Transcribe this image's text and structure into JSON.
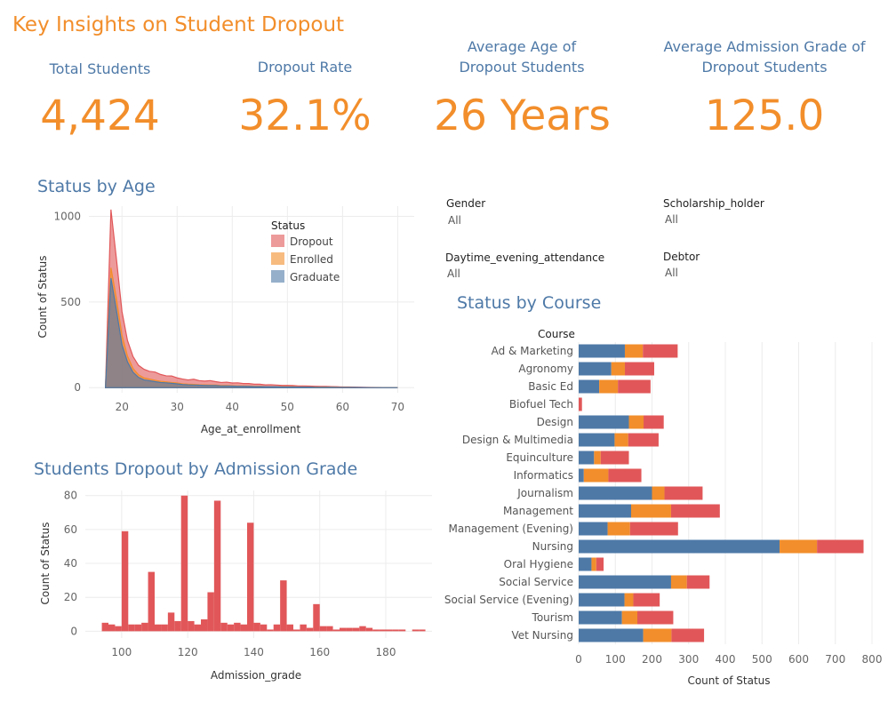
{
  "page_title": "Key Insights on Student Dropout",
  "kpis": [
    {
      "label": "Total Students",
      "value": "4,424"
    },
    {
      "label": "Dropout Rate",
      "value": "32.1%"
    },
    {
      "label": "Average Age of Dropout Students",
      "value": "26 Years"
    },
    {
      "label": "Average Admission Grade of Dropout Students",
      "value": "125.0"
    }
  ],
  "filters": [
    {
      "label": "Gender",
      "value": "All"
    },
    {
      "label": "Scholarship_holder",
      "value": "All"
    },
    {
      "label": "Daytime_evening_attendance",
      "value": "All"
    },
    {
      "label": "Debtor",
      "value": "All"
    }
  ],
  "colors": {
    "dropout": "#e15759",
    "enrolled": "#f28e2b",
    "graduate": "#4e79a7",
    "accent": "#f28e2b",
    "title_blue": "#4e79a7"
  },
  "chart_data": [
    {
      "id": "status_by_age",
      "type": "area",
      "title": "Status by Age",
      "xlabel": "Age_at_enrollment",
      "ylabel": "Count of Status",
      "xlim": [
        14,
        73
      ],
      "ylim": [
        -30,
        1060
      ],
      "xticks": [
        20,
        30,
        40,
        50,
        60,
        70
      ],
      "yticks": [
        0,
        500,
        1000
      ],
      "legend": {
        "title": "Status",
        "position": "top-right",
        "entries": [
          "Dropout",
          "Enrolled",
          "Graduate"
        ]
      },
      "x": [
        17,
        18,
        19,
        20,
        21,
        22,
        23,
        24,
        25,
        26,
        27,
        28,
        29,
        30,
        31,
        32,
        33,
        34,
        35,
        36,
        37,
        38,
        39,
        40,
        41,
        42,
        43,
        44,
        45,
        46,
        47,
        48,
        49,
        50,
        51,
        52,
        53,
        54,
        55,
        56,
        57,
        58,
        59,
        60,
        61,
        62,
        65,
        70
      ],
      "series": [
        {
          "name": "Graduate",
          "values": [
            0,
            640,
            450,
            250,
            150,
            90,
            60,
            45,
            40,
            35,
            30,
            28,
            25,
            22,
            18,
            16,
            15,
            14,
            13,
            12,
            12,
            10,
            10,
            9,
            8,
            8,
            7,
            6,
            6,
            5,
            5,
            5,
            4,
            4,
            4,
            3,
            3,
            3,
            2,
            2,
            2,
            2,
            1,
            1,
            1,
            1,
            0,
            0
          ]
        },
        {
          "name": "Enrolled",
          "values": [
            0,
            60,
            70,
            55,
            35,
            22,
            15,
            12,
            10,
            8,
            7,
            6,
            5,
            5,
            4,
            4,
            4,
            3,
            3,
            3,
            3,
            2,
            2,
            2,
            2,
            2,
            2,
            2,
            2,
            1,
            1,
            1,
            1,
            1,
            1,
            1,
            1,
            1,
            1,
            1,
            1,
            1,
            1,
            1,
            1,
            0,
            0,
            0
          ]
        },
        {
          "name": "Dropout",
          "values": [
            0,
            340,
            230,
            140,
            90,
            70,
            55,
            50,
            45,
            48,
            40,
            35,
            38,
            30,
            28,
            25,
            30,
            24,
            22,
            26,
            20,
            18,
            20,
            16,
            18,
            14,
            15,
            12,
            12,
            10,
            11,
            9,
            8,
            8,
            7,
            6,
            6,
            5,
            5,
            4,
            4,
            3,
            3,
            2,
            2,
            2,
            1,
            0
          ]
        }
      ]
    },
    {
      "id": "dropout_by_admission_grade",
      "type": "bar",
      "title": "Students Dropout by Admission Grade",
      "xlabel": "Admission_grade",
      "ylabel": "Count of Status",
      "xlim": [
        89,
        194
      ],
      "ylim": [
        -4,
        83
      ],
      "xticks": [
        100,
        120,
        140,
        160,
        180
      ],
      "yticks": [
        0,
        20,
        40,
        60,
        80
      ],
      "bin_width": 2,
      "x": [
        95,
        97,
        99,
        101,
        103,
        105,
        107,
        109,
        111,
        113,
        115,
        117,
        119,
        121,
        123,
        125,
        127,
        129,
        131,
        133,
        135,
        137,
        139,
        141,
        143,
        145,
        147,
        149,
        151,
        153,
        155,
        157,
        159,
        161,
        163,
        165,
        167,
        169,
        171,
        173,
        175,
        177,
        179,
        181,
        183,
        185,
        189,
        191
      ],
      "values": [
        5,
        4,
        3,
        59,
        4,
        4,
        5,
        35,
        4,
        4,
        11,
        6,
        80,
        6,
        4,
        7,
        23,
        77,
        5,
        4,
        5,
        4,
        64,
        5,
        4,
        1,
        4,
        30,
        4,
        1,
        4,
        2,
        16,
        3,
        3,
        1,
        2,
        2,
        2,
        3,
        2,
        1,
        1,
        1,
        1,
        1,
        1,
        1
      ]
    },
    {
      "id": "status_by_course",
      "type": "bar",
      "orientation": "horizontal",
      "stacked": true,
      "title": "Status by Course",
      "category_header": "Course",
      "xlabel": "Count of Status",
      "xlim": [
        0,
        800
      ],
      "xticks": [
        0,
        100,
        200,
        300,
        400,
        500,
        600,
        700,
        800
      ],
      "categories": [
        "Ad & Marketing",
        "Agronomy",
        "Basic Ed",
        "Biofuel Tech",
        "Design",
        "Design & Multimedia",
        "Equinculture",
        "Informatics",
        "Journalism",
        "Management",
        "Management (Evening)",
        "Nursing",
        "Oral Hygiene",
        "Social Service",
        "Social Service (Evening)",
        "Tourism",
        "Vet Nursing"
      ],
      "series": [
        {
          "name": "Graduate",
          "values": [
            126,
            89,
            56,
            0,
            137,
            98,
            42,
            14,
            200,
            143,
            79,
            548,
            35,
            252,
            125,
            118,
            176
          ]
        },
        {
          "name": "Enrolled",
          "values": [
            49,
            37,
            51,
            0,
            40,
            37,
            18,
            67,
            34,
            109,
            61,
            102,
            13,
            43,
            24,
            42,
            77
          ]
        },
        {
          "name": "Dropout",
          "values": [
            95,
            80,
            89,
            9,
            55,
            83,
            77,
            90,
            104,
            133,
            131,
            127,
            20,
            62,
            72,
            98,
            89
          ]
        }
      ]
    }
  ]
}
